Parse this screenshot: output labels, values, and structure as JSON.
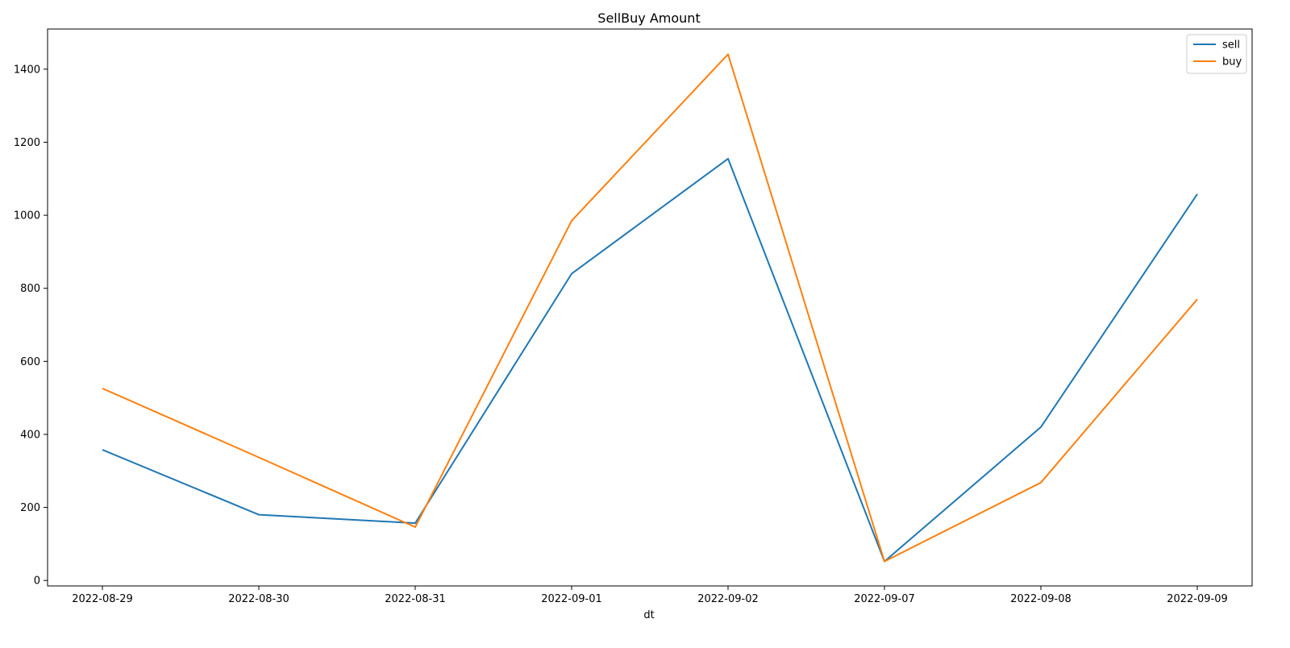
{
  "chart_data": {
    "type": "line",
    "title": "SellBuy Amount",
    "xlabel": "dt",
    "ylabel": "",
    "categories": [
      "2022-08-29",
      "2022-08-30",
      "2022-08-31",
      "2022-09-01",
      "2022-09-02",
      "2022-09-07",
      "2022-09-08",
      "2022-09-09"
    ],
    "ylim": [
      -15,
      1510
    ],
    "yticks": [
      0,
      200,
      400,
      600,
      800,
      1000,
      1200,
      1400
    ],
    "series": [
      {
        "name": "sell",
        "color": "#1f77b4",
        "values": [
          358,
          180,
          157,
          840,
          1155,
          52,
          420,
          1058
        ]
      },
      {
        "name": "buy",
        "color": "#ff7f0e",
        "values": [
          526,
          337,
          146,
          985,
          1441,
          52,
          268,
          770
        ]
      }
    ],
    "grid": false,
    "legend_position": "top-right"
  }
}
